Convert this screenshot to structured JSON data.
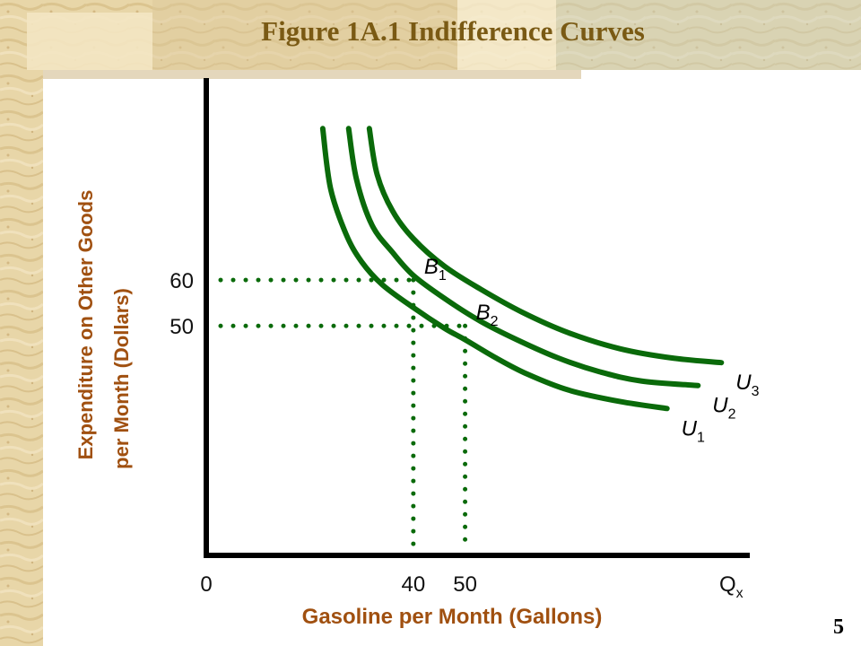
{
  "slide": {
    "title": "Figure 1A.1 Indifference Curves",
    "page_number": "5"
  },
  "colors": {
    "curve": "#0a6a0a",
    "axis": "#000000",
    "title": "#7a5a14",
    "axis_label": "#a05010",
    "ticks": "#111111"
  },
  "chart_data": {
    "type": "line",
    "xlabel": "Gasoline per Month (Gallons)",
    "ylabel": [
      "Expenditure on Other Goods",
      "per Month (Dollars)"
    ],
    "x_ticks": [
      {
        "value": 0,
        "label": "0"
      },
      {
        "value": 40,
        "label": "40"
      },
      {
        "value": 50,
        "label": "50"
      }
    ],
    "x_end_label": {
      "main": "Q",
      "sub": "x"
    },
    "y_ticks": [
      {
        "value": 60,
        "label": "60"
      },
      {
        "value": 50,
        "label": "50"
      }
    ],
    "xlim": [
      0,
      105
    ],
    "ylim": [
      0,
      104
    ],
    "series": [
      {
        "name": "U1",
        "label": {
          "main": "U",
          "sub": "1"
        },
        "points": [
          [
            22.5,
            93
          ],
          [
            24,
            80
          ],
          [
            27,
            70
          ],
          [
            30,
            64
          ],
          [
            34,
            59
          ],
          [
            40,
            54
          ],
          [
            46,
            49.5
          ],
          [
            50,
            47
          ],
          [
            56,
            43
          ],
          [
            62,
            39.5
          ],
          [
            70,
            36
          ],
          [
            80,
            33.5
          ],
          [
            89,
            32
          ]
        ]
      },
      {
        "name": "U2",
        "label": {
          "main": "U",
          "sub": "2"
        },
        "points": [
          [
            27.5,
            93
          ],
          [
            29,
            82
          ],
          [
            32,
            72
          ],
          [
            36,
            66
          ],
          [
            40,
            61
          ],
          [
            46,
            56
          ],
          [
            53,
            51
          ],
          [
            60,
            47
          ],
          [
            68,
            43
          ],
          [
            76,
            40
          ],
          [
            84,
            38
          ],
          [
            95,
            37
          ]
        ]
      },
      {
        "name": "U3",
        "label": {
          "main": "U",
          "sub": "3"
        },
        "points": [
          [
            31.5,
            93
          ],
          [
            33,
            83
          ],
          [
            36,
            75
          ],
          [
            40,
            69
          ],
          [
            46,
            63
          ],
          [
            53,
            58
          ],
          [
            61,
            53
          ],
          [
            70,
            48.5
          ],
          [
            80,
            45
          ],
          [
            90,
            43
          ],
          [
            99.5,
            42
          ]
        ]
      }
    ],
    "points": [
      {
        "name": "B1",
        "label": {
          "main": "B",
          "sub": "1"
        },
        "x": 40,
        "y": 60
      },
      {
        "name": "B2",
        "label": {
          "main": "B",
          "sub": "2"
        },
        "x": 50,
        "y": 50
      }
    ],
    "grid": false,
    "legend": "none"
  }
}
